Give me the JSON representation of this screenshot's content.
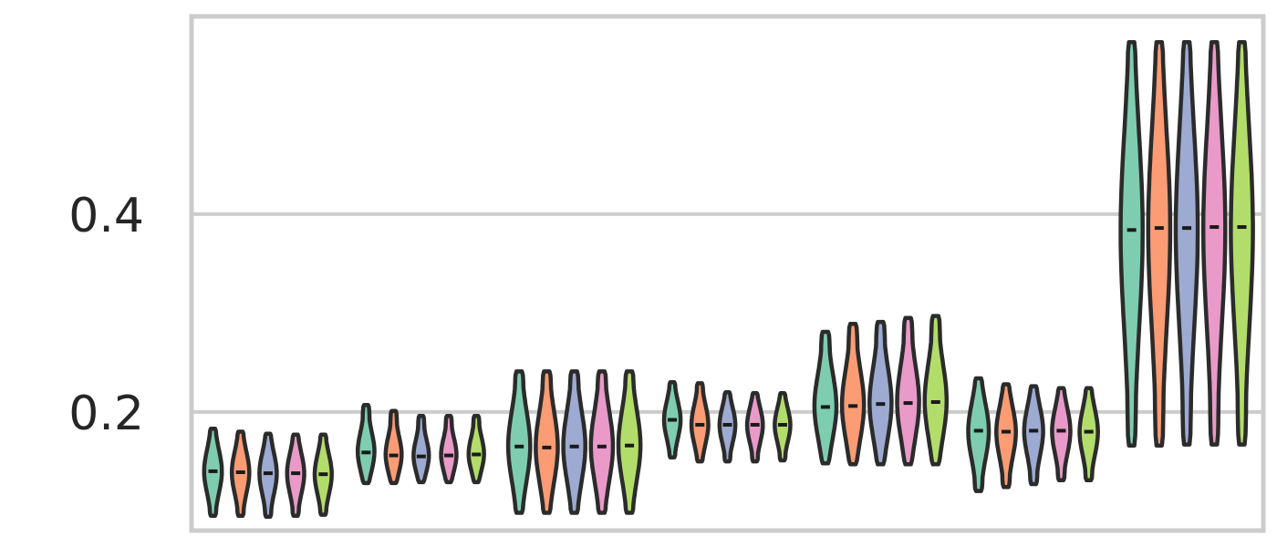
{
  "chart_data": {
    "type": "violin",
    "title": "",
    "xlabel": "",
    "ylabel": "",
    "ylim": [
      0.08,
      0.6
    ],
    "yticks": [
      0.2,
      0.4
    ],
    "ytick_labels": [
      "0.2",
      "0.4"
    ],
    "grid": "horizontal",
    "legend": "none",
    "hue_colors": [
      "#7fcdb1",
      "#fc9c74",
      "#9daad1",
      "#e99ac9",
      "#b3dd6b"
    ],
    "outline_color": "#2b2b2b",
    "groups": [
      {
        "violins": [
          {
            "min": 0.095,
            "max": 0.183,
            "median": 0.14
          },
          {
            "min": 0.095,
            "max": 0.18,
            "median": 0.139
          },
          {
            "min": 0.094,
            "max": 0.178,
            "median": 0.138
          },
          {
            "min": 0.095,
            "max": 0.177,
            "median": 0.138
          },
          {
            "min": 0.096,
            "max": 0.177,
            "median": 0.137
          }
        ]
      },
      {
        "violins": [
          {
            "min": 0.128,
            "max": 0.207,
            "median": 0.159
          },
          {
            "min": 0.128,
            "max": 0.201,
            "median": 0.156
          },
          {
            "min": 0.129,
            "max": 0.196,
            "median": 0.155
          },
          {
            "min": 0.129,
            "max": 0.196,
            "median": 0.156
          },
          {
            "min": 0.129,
            "max": 0.196,
            "median": 0.157
          }
        ]
      },
      {
        "violins": [
          {
            "min": 0.098,
            "max": 0.241,
            "median": 0.165
          },
          {
            "min": 0.098,
            "max": 0.241,
            "median": 0.164
          },
          {
            "min": 0.098,
            "max": 0.241,
            "median": 0.165
          },
          {
            "min": 0.098,
            "max": 0.241,
            "median": 0.165
          },
          {
            "min": 0.098,
            "max": 0.241,
            "median": 0.166
          }
        ]
      },
      {
        "violins": [
          {
            "min": 0.154,
            "max": 0.23,
            "median": 0.192
          },
          {
            "min": 0.15,
            "max": 0.229,
            "median": 0.187
          },
          {
            "min": 0.15,
            "max": 0.22,
            "median": 0.187
          },
          {
            "min": 0.15,
            "max": 0.219,
            "median": 0.187
          },
          {
            "min": 0.151,
            "max": 0.219,
            "median": 0.187
          }
        ]
      },
      {
        "violins": [
          {
            "min": 0.148,
            "max": 0.281,
            "median": 0.205
          },
          {
            "min": 0.147,
            "max": 0.289,
            "median": 0.206
          },
          {
            "min": 0.147,
            "max": 0.291,
            "median": 0.208
          },
          {
            "min": 0.147,
            "max": 0.295,
            "median": 0.209
          },
          {
            "min": 0.147,
            "max": 0.297,
            "median": 0.21
          }
        ]
      },
      {
        "violins": [
          {
            "min": 0.12,
            "max": 0.234,
            "median": 0.181
          },
          {
            "min": 0.124,
            "max": 0.228,
            "median": 0.18
          },
          {
            "min": 0.127,
            "max": 0.226,
            "median": 0.181
          },
          {
            "min": 0.131,
            "max": 0.224,
            "median": 0.181
          },
          {
            "min": 0.131,
            "max": 0.224,
            "median": 0.18
          }
        ]
      },
      {
        "violins": [
          {
            "min": 0.166,
            "max": 0.574,
            "median": 0.384
          },
          {
            "min": 0.166,
            "max": 0.574,
            "median": 0.386
          },
          {
            "min": 0.167,
            "max": 0.574,
            "median": 0.386
          },
          {
            "min": 0.167,
            "max": 0.574,
            "median": 0.387
          },
          {
            "min": 0.167,
            "max": 0.574,
            "median": 0.387
          }
        ]
      }
    ]
  }
}
